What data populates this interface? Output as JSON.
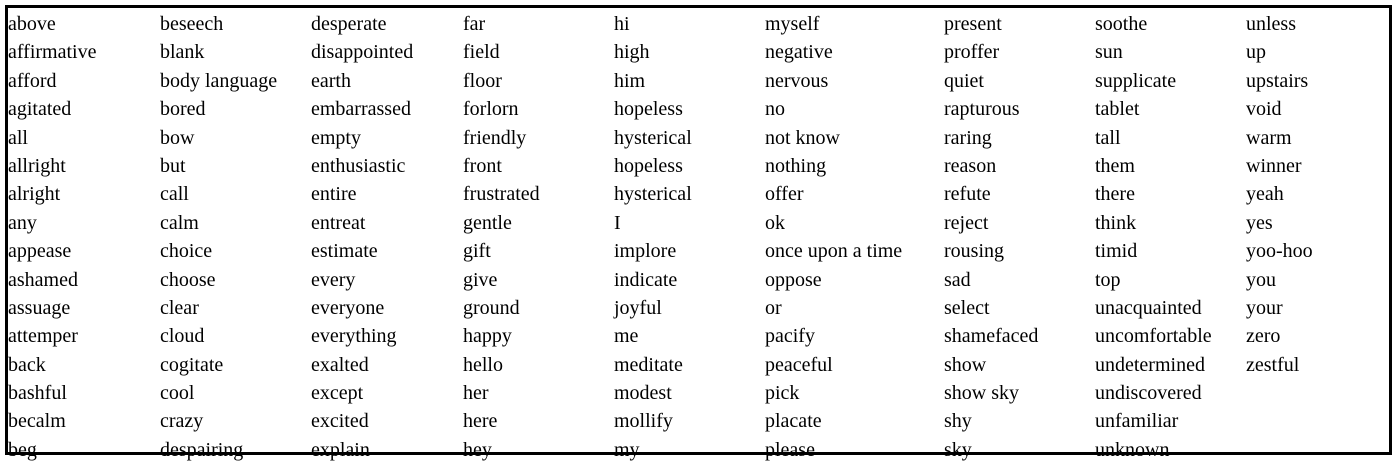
{
  "columns": [
    [
      "above",
      "affirmative",
      "afford",
      "agitated",
      "all",
      "allright",
      "alright",
      "any",
      "appease",
      "ashamed",
      "assuage",
      "attemper",
      "back",
      "bashful",
      "becalm",
      "beg"
    ],
    [
      "beseech",
      "blank",
      "body language",
      "bored",
      "bow",
      "but",
      "call",
      "calm",
      "choice",
      "choose",
      "clear",
      "cloud",
      "cogitate",
      "cool",
      "crazy",
      "despairing"
    ],
    [
      "desperate",
      "disappointed",
      "earth",
      "embarrassed",
      "empty",
      "enthusiastic",
      "entire",
      "entreat",
      "estimate",
      "every",
      "everyone",
      "everything",
      "exalted",
      "except",
      "excited",
      "explain"
    ],
    [
      "far",
      "field",
      "floor",
      "forlorn",
      "friendly",
      "front",
      "frustrated",
      "gentle",
      "gift",
      "give",
      "ground",
      "happy",
      "hello",
      "her",
      "here",
      "hey"
    ],
    [
      "hi",
      "high",
      "him",
      "hopeless",
      "hysterical",
      "hopeless",
      "hysterical",
      "I",
      "implore",
      "indicate",
      "joyful",
      "me",
      "meditate",
      "modest",
      "mollify",
      "my"
    ],
    [
      "myself",
      "negative",
      "nervous",
      "no",
      "not know",
      "nothing",
      "offer",
      "ok",
      "once upon a time",
      "oppose",
      "or",
      "pacify",
      "peaceful",
      "pick",
      "placate",
      "please"
    ],
    [
      "present",
      "proffer",
      "quiet",
      "rapturous",
      "raring",
      "reason",
      "refute",
      "reject",
      "rousing",
      "sad",
      "select",
      "shamefaced",
      "show",
      "show sky",
      "shy",
      "sky"
    ],
    [
      "soothe",
      "sun",
      "supplicate",
      "tablet",
      "tall",
      "them",
      "there",
      "think",
      "timid",
      "top",
      "unacquainted",
      "uncomfortable",
      "undetermined",
      "undiscovered",
      "unfamiliar",
      "unknown"
    ],
    [
      "unless",
      "up",
      "upstairs",
      "void",
      "warm",
      "winner",
      "yeah",
      "yes",
      "yoo-hoo",
      "you",
      "your",
      "zero",
      "zestful"
    ]
  ]
}
